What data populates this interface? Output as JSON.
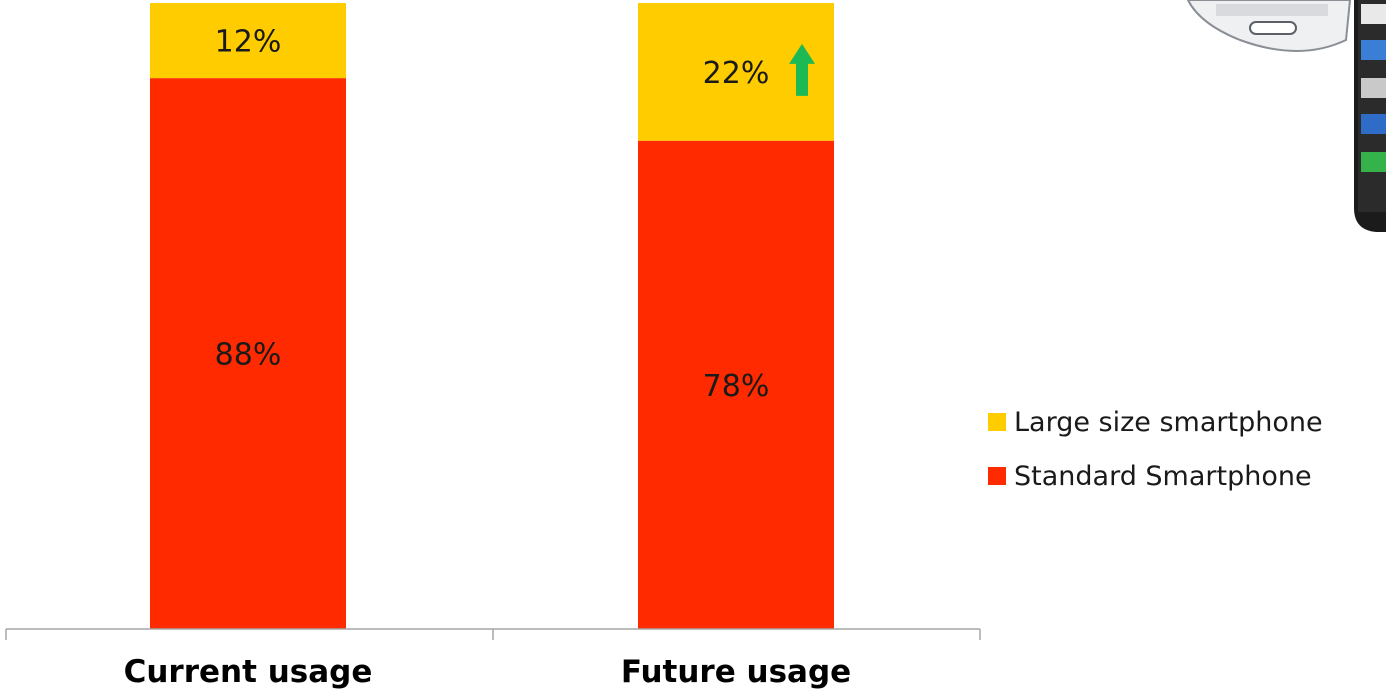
{
  "chart_data": {
    "type": "bar",
    "stacked": true,
    "normalized_percent": true,
    "categories": [
      "Current usage",
      "Future usage"
    ],
    "series": [
      {
        "name": "Standard Smartphone",
        "values": [
          88,
          78
        ],
        "labels": [
          "88%",
          "78%"
        ],
        "color": "#ff2a00"
      },
      {
        "name": "Large size smartphone",
        "values": [
          12,
          22
        ],
        "labels": [
          "12%",
          "22%"
        ],
        "color": "#ffcc00"
      }
    ],
    "ylim": [
      0,
      100
    ],
    "grid": false,
    "legend_position": "right",
    "annotations": [
      {
        "type": "arrow-up",
        "category": "Future usage",
        "series": "Large size smartphone",
        "color": "#1db954"
      }
    ]
  },
  "image": {
    "icon": "smartphone-icon"
  }
}
